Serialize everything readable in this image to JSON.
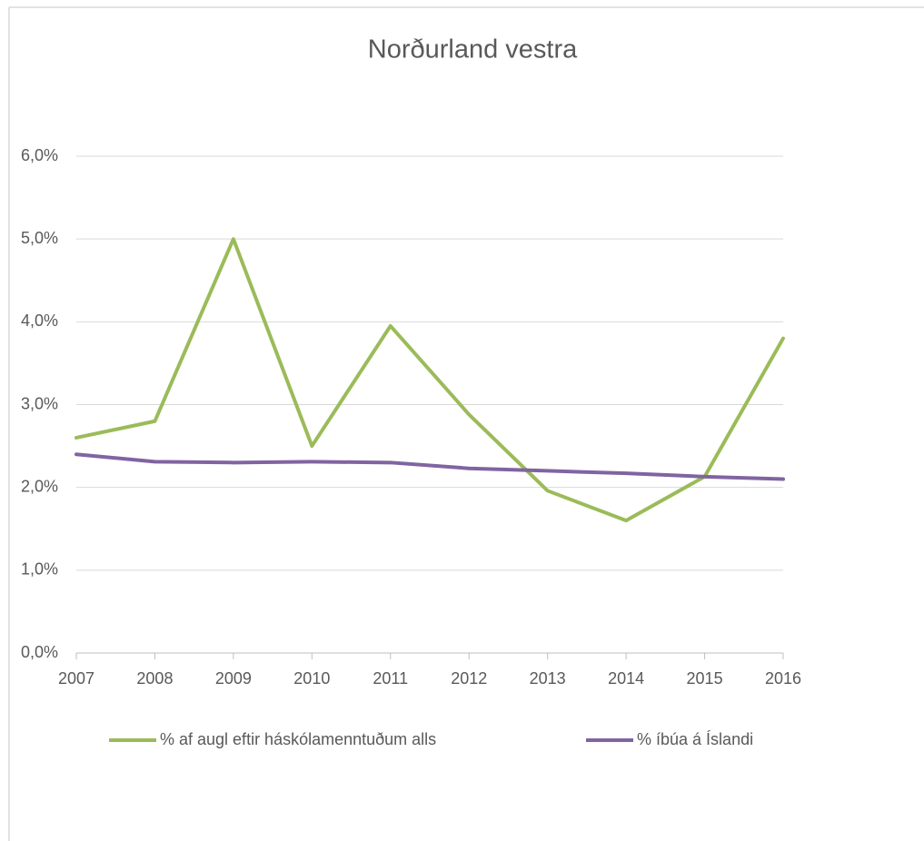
{
  "chart_data": {
    "type": "line",
    "title": "Norðurland vestra",
    "categories": [
      "2007",
      "2008",
      "2009",
      "2010",
      "2011",
      "2012",
      "2013",
      "2014",
      "2015",
      "2016"
    ],
    "series": [
      {
        "name": "% af augl eftir háskólamenntuðum alls",
        "color": "#9bbb59",
        "values": [
          2.6,
          2.8,
          5.0,
          2.5,
          3.95,
          2.88,
          1.96,
          1.6,
          2.13,
          3.8
        ]
      },
      {
        "name": "% íbúa á Íslandi",
        "color": "#8064a2",
        "values": [
          2.4,
          2.31,
          2.3,
          2.31,
          2.3,
          2.23,
          2.2,
          2.17,
          2.13,
          2.1
        ]
      }
    ],
    "ylim": [
      0,
      6
    ],
    "yticks": [
      {
        "value": 0,
        "label": "0,0%"
      },
      {
        "value": 1,
        "label": "1,0%"
      },
      {
        "value": 2,
        "label": "2,0%"
      },
      {
        "value": 3,
        "label": "3,0%"
      },
      {
        "value": 4,
        "label": "4,0%"
      },
      {
        "value": 5,
        "label": "5,0%"
      },
      {
        "value": 6,
        "label": "6,0%"
      }
    ],
    "grid": true,
    "legend": "bottom"
  }
}
